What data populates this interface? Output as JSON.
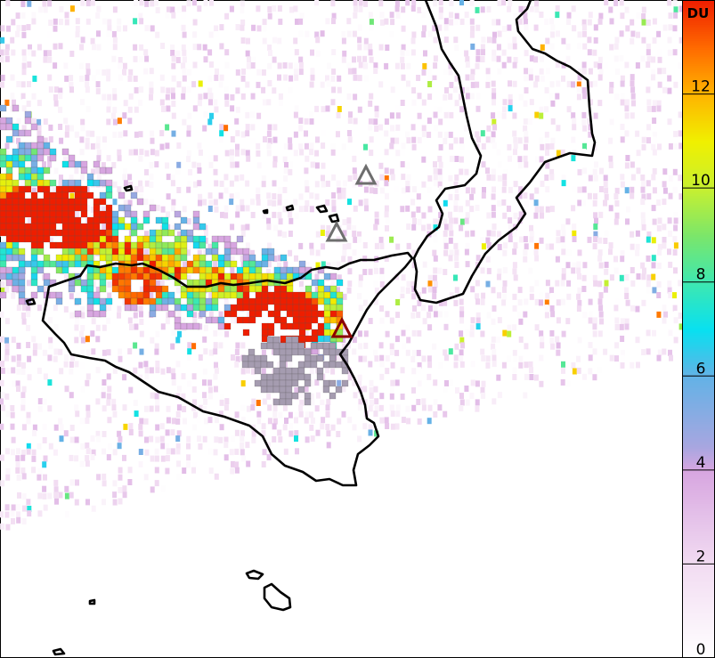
{
  "colorbar": {
    "unit": "DU",
    "ticks": [
      {
        "value": 0,
        "label": "0"
      },
      {
        "value": 2,
        "label": "2"
      },
      {
        "value": 4,
        "label": "4"
      },
      {
        "value": 6,
        "label": "6"
      },
      {
        "value": 8,
        "label": "8"
      },
      {
        "value": 10,
        "label": "10"
      },
      {
        "value": 12,
        "label": "12"
      }
    ],
    "range": [
      0,
      14
    ],
    "stops": [
      {
        "value": 0,
        "color": "#ffffff"
      },
      {
        "value": 2,
        "color": "#f2dcf2"
      },
      {
        "value": 4,
        "color": "#d7a6e0"
      },
      {
        "value": 4.5,
        "color": "#a8a6e0"
      },
      {
        "value": 6,
        "color": "#63b2e6"
      },
      {
        "value": 7,
        "color": "#08e0f0"
      },
      {
        "value": 8,
        "color": "#3ee8b0"
      },
      {
        "value": 9,
        "color": "#7be66a"
      },
      {
        "value": 10,
        "color": "#c7f030"
      },
      {
        "value": 11,
        "color": "#f0f000"
      },
      {
        "value": 12,
        "color": "#ffb400"
      },
      {
        "value": 13,
        "color": "#ff6a00"
      },
      {
        "value": 14,
        "color": "#ee1e00"
      }
    ]
  },
  "volcanoes": [
    {
      "name": "volcano-marker-stromboli",
      "status": "inactive",
      "color": "#6e6e6e"
    },
    {
      "name": "volcano-marker-vulcano",
      "status": "inactive",
      "color": "#6e6e6e"
    },
    {
      "name": "volcano-marker-etna",
      "status": "active",
      "color": "#8b0000"
    }
  ],
  "colors": {
    "coastline": "#000000",
    "plume_core": "#cc0000",
    "plume_edge_gray": "#a59cb0"
  }
}
